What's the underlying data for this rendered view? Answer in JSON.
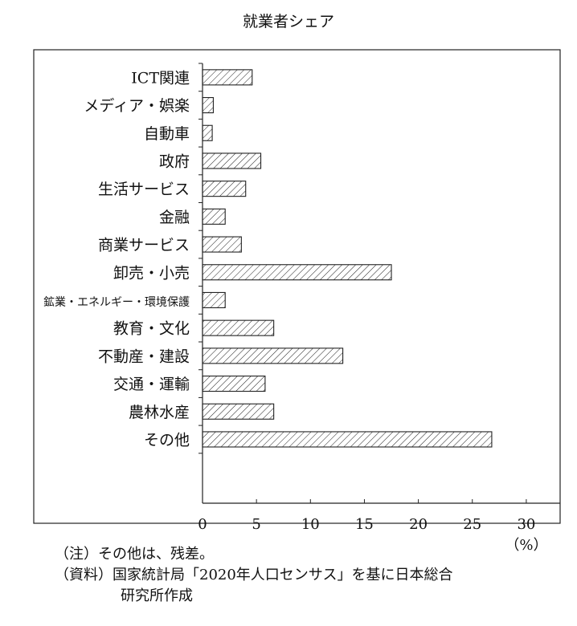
{
  "chart_data": {
    "type": "bar",
    "orientation": "horizontal",
    "title": "就業者シェア",
    "categories": [
      "ICT関連",
      "メディア・娯楽",
      "自動車",
      "政府",
      "生活サービス",
      "金融",
      "商業サービス",
      "卸売・小売",
      "鉱業・エネルギー・環境保護",
      "教育・文化",
      "不動産・建設",
      "交通・運輸",
      "農林水産",
      "その他"
    ],
    "values": [
      4.6,
      1.0,
      0.9,
      5.4,
      4.0,
      2.1,
      3.6,
      17.5,
      2.1,
      6.6,
      13.0,
      5.8,
      6.6,
      26.8
    ],
    "xlim": [
      0,
      32.5
    ],
    "xticks": [
      "0",
      "5",
      "10",
      "15",
      "20",
      "25",
      "30"
    ],
    "xunit": "（%）",
    "grid": false,
    "fill": "hatched",
    "bar_color": "#222222"
  },
  "notes": {
    "note1_label": "（注）",
    "note1_text": "その他は、残差。",
    "note2_label": "（資料）",
    "note2_text": "国家統計局「2020年人口センサス」を基に日本総合",
    "note2_text_cont": "研究所作成"
  }
}
